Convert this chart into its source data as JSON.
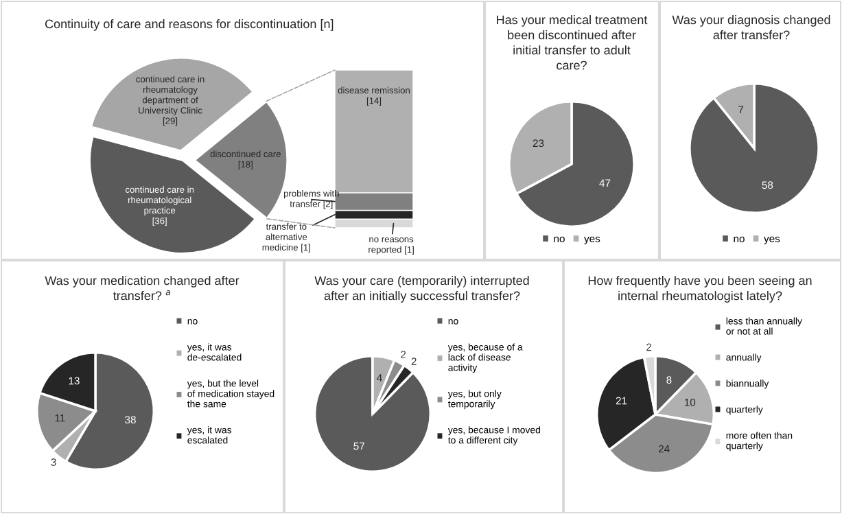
{
  "chart_data": [
    {
      "type": "pie",
      "title": "Continuity of care and reasons for discontinuation [n]",
      "categories": [
        "continued care in rheumatology department of University Clinic",
        "discontinued care",
        "continued care in rheumatological practice"
      ],
      "values": [
        29,
        18,
        36
      ],
      "value_labels": [
        "[29]",
        "[18]",
        "[36]"
      ],
      "colors": [
        "#a6a6a6",
        "#808080",
        "#5a5a5a"
      ],
      "legend": false
    },
    {
      "type": "bar",
      "stacked": true,
      "categories": [
        null
      ],
      "series": [
        {
          "name": "no reasons reported",
          "color": "#d9d9d9",
          "values": [
            1
          ],
          "value_labels": [
            "[1]"
          ]
        },
        {
          "name": "transfer to alternative medicine",
          "color": "#262626",
          "values": [
            1
          ],
          "value_labels": [
            "[1]"
          ]
        },
        {
          "name": "problems with transfer",
          "color": "#808080",
          "values": [
            2
          ],
          "value_labels": [
            "[2]"
          ]
        },
        {
          "name": "disease remission",
          "color": "#b0b0b0",
          "values": [
            14
          ],
          "value_labels": [
            "[14]"
          ]
        }
      ],
      "tick_labels": false
    },
    {
      "type": "pie",
      "title": "Has your medical treatment been discontinued after initial transfer to adult care?",
      "categories": [
        "no",
        "yes"
      ],
      "values": [
        47,
        23
      ],
      "colors": [
        "#5a5a5a",
        "#b0b0b0"
      ],
      "data_labels": true,
      "legend": "bottom"
    },
    {
      "type": "pie",
      "title": "Was your diagnosis changed after transfer?",
      "categories": [
        "no",
        "yes"
      ],
      "values": [
        58,
        7
      ],
      "colors": [
        "#5a5a5a",
        "#b0b0b0"
      ],
      "data_labels": true,
      "legend": "bottom"
    },
    {
      "type": "pie",
      "title": "Was your medication changed after transfer? $^{a}$",
      "categories": [
        "no",
        "yes, it was de-escalated",
        "yes, but the level of medication stayed the same",
        "yes, it was escalated"
      ],
      "values": [
        38,
        3,
        11,
        13
      ],
      "colors": [
        "#5a5a5a",
        "#b0b0b0",
        "#8c8c8c",
        "#262626"
      ],
      "data_labels": true,
      "legend": "right"
    },
    {
      "type": "pie",
      "title": "Was your care (temporarily) interrupted after an initially successful transfer?",
      "categories": [
        "no",
        "yes, because of a lack of disease activity",
        "yes, but only temporarily",
        "yes, because I moved to a different city"
      ],
      "values": [
        57,
        4,
        2,
        2
      ],
      "colors": [
        "#5a5a5a",
        "#b0b0b0",
        "#8c8c8c",
        "#262626"
      ],
      "data_labels": true,
      "legend": "right"
    },
    {
      "type": "pie",
      "title": "How frequently have you been seeing an internal rheumatologist lately?",
      "categories": [
        "less than annually or not at all",
        "annually",
        "biannually",
        "quarterly",
        "more often than quarterly"
      ],
      "values": [
        8,
        10,
        24,
        21,
        2
      ],
      "colors": [
        "#5a5a5a",
        "#b0b0b0",
        "#8c8c8c",
        "#262626",
        "#d9d9d9"
      ],
      "data_labels": true,
      "legend": "right"
    }
  ]
}
